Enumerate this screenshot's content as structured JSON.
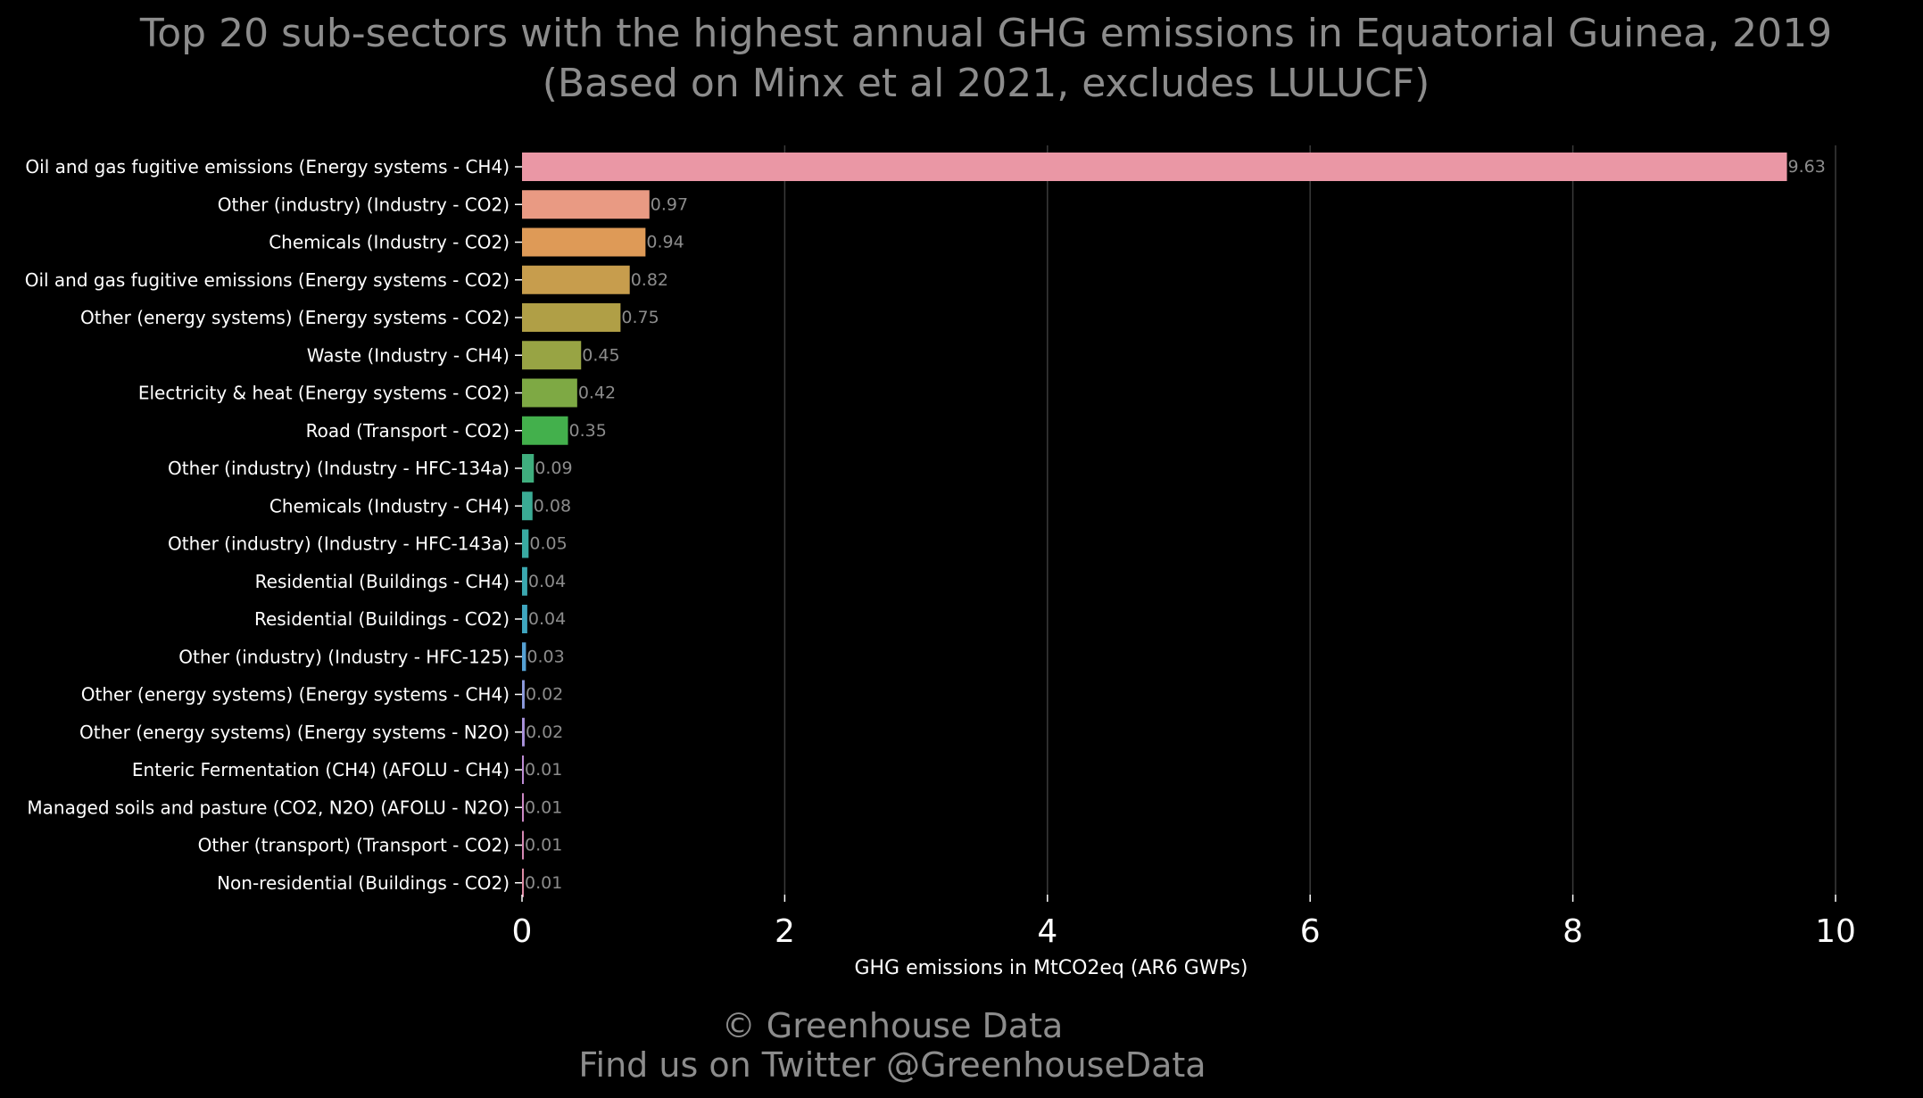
{
  "chart_data": {
    "type": "bar",
    "orientation": "horizontal",
    "title": "Top 20 sub-sectors with the highest annual GHG emissions in Equatorial Guinea, 2019",
    "subtitle": "(Based on Minx et al 2021, excludes LULUCF)",
    "xlabel": "GHG emissions in MtCO2eq (AR6 GWPs)",
    "ylabel": "",
    "xlim": [
      0,
      10
    ],
    "x_ticks": [
      0,
      2,
      4,
      6,
      8,
      10
    ],
    "x_tick_labels": [
      "0",
      "2",
      "4",
      "6",
      "8",
      "10"
    ],
    "grid": "vertical",
    "legend": "none",
    "categories": [
      "Oil and gas fugitive emissions (Energy systems - CH4)",
      "Other (industry) (Industry - CO2)",
      "Chemicals (Industry - CO2)",
      "Oil and gas fugitive emissions (Energy systems - CO2)",
      "Other (energy systems) (Energy systems - CO2)",
      "Waste (Industry - CH4)",
      "Electricity & heat (Energy systems - CO2)",
      "Road (Transport - CO2)",
      "Other (industry) (Industry - HFC-134a)",
      "Chemicals (Industry - CH4)",
      "Other (industry) (Industry - HFC-143a)",
      "Residential (Buildings - CH4)",
      "Residential (Buildings - CO2)",
      "Other (industry) (Industry - HFC-125)",
      "Other (energy systems) (Energy systems - CH4)",
      "Other (energy systems) (Energy systems - N2O)",
      "Enteric Fermentation (CH4) (AFOLU - CH4)",
      "Managed soils and pasture (CO2, N2O) (AFOLU - N2O)",
      "Other (transport) (Transport - CO2)",
      "Non-residential (Buildings - CO2)"
    ],
    "values": [
      9.63,
      0.97,
      0.94,
      0.82,
      0.75,
      0.45,
      0.42,
      0.35,
      0.09,
      0.08,
      0.05,
      0.04,
      0.04,
      0.03,
      0.02,
      0.02,
      0.01,
      0.01,
      0.01,
      0.01
    ],
    "value_labels": [
      "9.63",
      "0.97",
      "0.94",
      "0.82",
      "0.75",
      "0.45",
      "0.42",
      "0.35",
      "0.09",
      "0.08",
      "0.05",
      "0.04",
      "0.04",
      "0.03",
      "0.02",
      "0.02",
      "0.01",
      "0.01",
      "0.01",
      "0.01"
    ],
    "colors": [
      "#ea97a5",
      "#e99a83",
      "#de9a57",
      "#c79d4d",
      "#b09f46",
      "#98a444",
      "#7ea944",
      "#43b04c",
      "#3fae7e",
      "#3aab94",
      "#39aaa2",
      "#3ba8b0",
      "#3fa6bf",
      "#55a1d4",
      "#8c9bde",
      "#aa93dd",
      "#be8cd5",
      "#cd88c6",
      "#d688b4",
      "#dd8ba5"
    ]
  },
  "credits": {
    "line1": "© Greenhouse Data",
    "line2": "Find us on Twitter @GreenhouseData"
  },
  "theme": {
    "background": "#000000",
    "muted_text": "#8c8c8c",
    "axis_text": "#ffffff",
    "grid": "#3a3a3a"
  }
}
